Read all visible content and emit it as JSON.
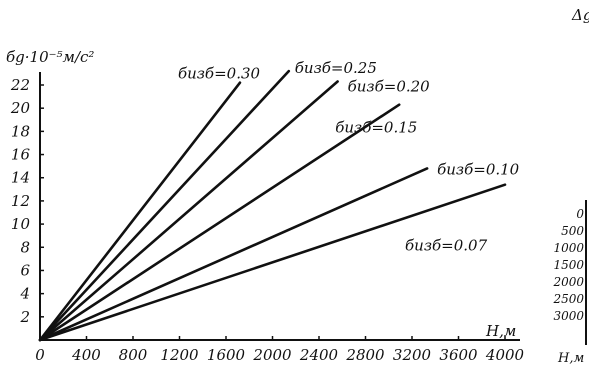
{
  "chart_data": {
    "type": "line",
    "ylabel": "бg·10⁻⁵м/с²",
    "xlabel": "Н,м",
    "xlim": [
      0,
      4000
    ],
    "ylim": [
      0,
      22
    ],
    "x_ticks": [
      "0",
      "400",
      "800",
      "1200",
      "1600",
      "2000",
      "2400",
      "2800",
      "3200",
      "3600",
      "4000"
    ],
    "y_ticks": [
      "2",
      "4",
      "6",
      "8",
      "10",
      "12",
      "14",
      "16",
      "18",
      "20",
      "22"
    ],
    "series": [
      {
        "name": "бизб=0.30",
        "x": [
          0,
          1720
        ],
        "y": [
          0,
          22.2
        ]
      },
      {
        "name": "бизб=0.25",
        "x": [
          0,
          2140
        ],
        "y": [
          0,
          23.2
        ]
      },
      {
        "name": "бизб=0.20",
        "x": [
          0,
          2560
        ],
        "y": [
          0,
          22.3
        ]
      },
      {
        "name": "бизб=0.15",
        "x": [
          0,
          3090
        ],
        "y": [
          0,
          20.3
        ]
      },
      {
        "name": "бизб=0.10",
        "x": [
          0,
          3330
        ],
        "y": [
          0,
          14.8
        ]
      },
      {
        "name": "бизб=0.07",
        "x": [
          0,
          4000
        ],
        "y": [
          0,
          13.4
        ]
      }
    ],
    "grid": false,
    "legend": "inline labels at line ends"
  },
  "side_panel": {
    "title": "Δg",
    "ticks": [
      "0",
      "500",
      "1000",
      "1500",
      "2000",
      "2500",
      "3000"
    ],
    "axis_label": "Н,м"
  }
}
